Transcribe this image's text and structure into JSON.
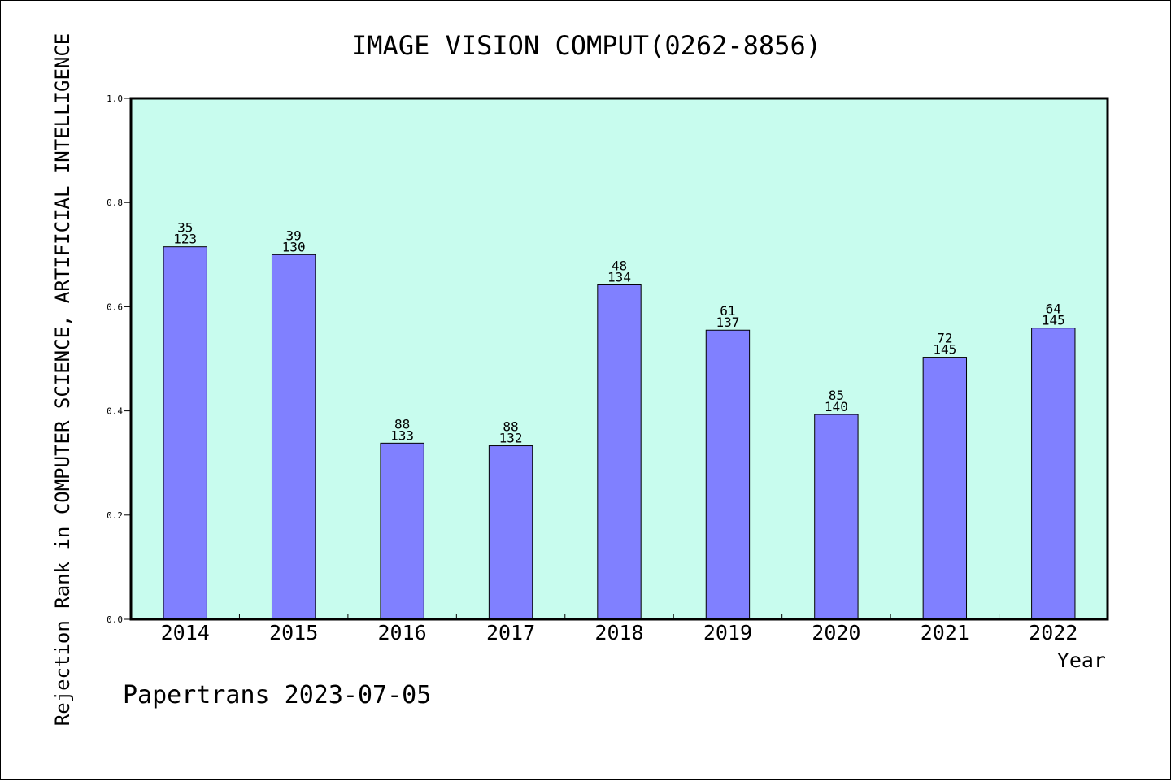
{
  "chart_data": {
    "type": "bar",
    "title": "IMAGE VISION COMPUT(0262-8856)",
    "xlabel": "Year",
    "ylabel": "Rejection Rank in COMPUTER SCIENCE, ARTIFICIAL INTELLIGENCE",
    "ylim": [
      0,
      1.0
    ],
    "yticks": [
      "0.0",
      "0.2",
      "0.4",
      "0.6",
      "0.8",
      "1.0"
    ],
    "categories": [
      "2014",
      "2015",
      "2016",
      "2017",
      "2018",
      "2019",
      "2020",
      "2021",
      "2022"
    ],
    "values": [
      0.715,
      0.7,
      0.338,
      0.333,
      0.642,
      0.555,
      0.393,
      0.503,
      0.559
    ],
    "rank_labels": [
      "35",
      "39",
      "88",
      "88",
      "48",
      "61",
      "85",
      "72",
      "64"
    ],
    "total_labels": [
      "123",
      "130",
      "133",
      "132",
      "134",
      "137",
      "140",
      "145",
      "145"
    ],
    "grid": false,
    "colors": {
      "plot_background": "#c8fcee",
      "bar_fill": "#8080ff",
      "bar_stroke": "#000000",
      "axis": "#000000"
    }
  },
  "footer": {
    "credit": "Papertrans 2023-07-05"
  }
}
